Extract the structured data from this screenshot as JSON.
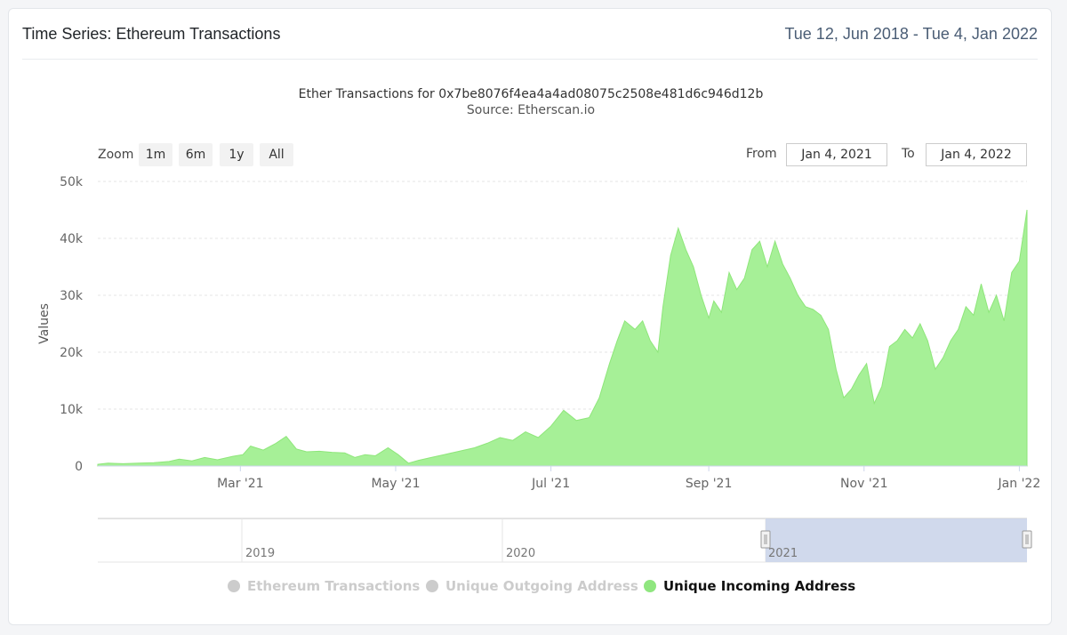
{
  "card": {
    "title": "Time Series: Ethereum Transactions",
    "date_range": "Tue 12, Jun 2018 - Tue 4, Jan 2022"
  },
  "chart_header": {
    "title": "Ether Transactions for 0x7be8076f4ea4a4ad08075c2508e481d6c946d12b",
    "subtitle": "Source: Etherscan.io"
  },
  "range_selector": {
    "zoom_label": "Zoom",
    "buttons": [
      "1m",
      "6m",
      "1y",
      "All"
    ],
    "from_label": "From",
    "from_value": "Jan 4, 2021",
    "to_label": "To",
    "to_value": "Jan 4, 2022"
  },
  "colors": {
    "series_fill": "#a6f097",
    "series_stroke": "#8ee67a",
    "navigator_mask": "#cbd5ea",
    "legend_active": "#8fe67f",
    "legend_inactive": "#cccccc"
  },
  "chart_data": {
    "type": "area",
    "title": "Ether Transactions for 0x7be8076f4ea4a4ad08075c2508e481d6c946d12b",
    "subtitle": "Source: Etherscan.io",
    "ylabel": "Values",
    "xlabel": "",
    "ylim": [
      0,
      50000
    ],
    "xlim": [
      "2021-01-04",
      "2022-01-04"
    ],
    "y_ticks": [
      0,
      10000,
      20000,
      30000,
      40000,
      50000
    ],
    "y_tick_labels": [
      "0",
      "10k",
      "20k",
      "30k",
      "40k",
      "50k"
    ],
    "x_ticks": [
      {
        "date": "2021-03-01",
        "label": "Mar '21"
      },
      {
        "date": "2021-05-01",
        "label": "May '21"
      },
      {
        "date": "2021-07-01",
        "label": "Jul '21"
      },
      {
        "date": "2021-09-01",
        "label": "Sep '21"
      },
      {
        "date": "2021-11-01",
        "label": "Nov '21"
      },
      {
        "date": "2022-01-01",
        "label": "Jan '22"
      }
    ],
    "grid": true,
    "legend_position": "bottom",
    "legend": [
      {
        "name": "Ethereum Transactions",
        "visible": false
      },
      {
        "name": "Unique Outgoing Address",
        "visible": false
      },
      {
        "name": "Unique Incoming Address",
        "visible": true
      }
    ],
    "series": [
      {
        "name": "Unique Incoming Address",
        "x": [
          "2021-01-04",
          "2021-01-08",
          "2021-01-14",
          "2021-01-20",
          "2021-01-26",
          "2021-02-01",
          "2021-02-05",
          "2021-02-10",
          "2021-02-15",
          "2021-02-20",
          "2021-02-26",
          "2021-03-02",
          "2021-03-05",
          "2021-03-10",
          "2021-03-15",
          "2021-03-19",
          "2021-03-23",
          "2021-03-27",
          "2021-04-01",
          "2021-04-06",
          "2021-04-11",
          "2021-04-15",
          "2021-04-19",
          "2021-04-23",
          "2021-04-28",
          "2021-05-02",
          "2021-05-06",
          "2021-05-10",
          "2021-05-15",
          "2021-05-20",
          "2021-05-26",
          "2021-06-01",
          "2021-06-06",
          "2021-06-11",
          "2021-06-16",
          "2021-06-21",
          "2021-06-26",
          "2021-07-01",
          "2021-07-06",
          "2021-07-11",
          "2021-07-16",
          "2021-07-20",
          "2021-07-24",
          "2021-07-27",
          "2021-07-30",
          "2021-08-03",
          "2021-08-06",
          "2021-08-09",
          "2021-08-12",
          "2021-08-14",
          "2021-08-17",
          "2021-08-20",
          "2021-08-23",
          "2021-08-26",
          "2021-08-29",
          "2021-09-01",
          "2021-09-03",
          "2021-09-06",
          "2021-09-09",
          "2021-09-12",
          "2021-09-15",
          "2021-09-18",
          "2021-09-21",
          "2021-09-24",
          "2021-09-27",
          "2021-09-30",
          "2021-10-03",
          "2021-10-06",
          "2021-10-09",
          "2021-10-12",
          "2021-10-15",
          "2021-10-18",
          "2021-10-21",
          "2021-10-24",
          "2021-10-27",
          "2021-10-30",
          "2021-11-02",
          "2021-11-05",
          "2021-11-08",
          "2021-11-11",
          "2021-11-14",
          "2021-11-17",
          "2021-11-20",
          "2021-11-23",
          "2021-11-26",
          "2021-11-29",
          "2021-12-02",
          "2021-12-05",
          "2021-12-08",
          "2021-12-11",
          "2021-12-14",
          "2021-12-17",
          "2021-12-20",
          "2021-12-23",
          "2021-12-26",
          "2021-12-29",
          "2022-01-01",
          "2022-01-04"
        ],
        "values": [
          300,
          500,
          400,
          500,
          600,
          800,
          1200,
          900,
          1500,
          1100,
          1700,
          2000,
          3500,
          2800,
          4000,
          5200,
          3000,
          2500,
          2600,
          2400,
          2300,
          1500,
          2000,
          1800,
          3200,
          2000,
          500,
          1000,
          1500,
          2000,
          2600,
          3200,
          4000,
          5000,
          4500,
          6000,
          5000,
          7000,
          9800,
          8000,
          8500,
          12000,
          18000,
          22000,
          25500,
          24000,
          25500,
          22000,
          20000,
          28000,
          37000,
          41800,
          38000,
          35000,
          30000,
          26000,
          29000,
          27000,
          34000,
          31000,
          33000,
          38000,
          39500,
          35000,
          39500,
          35500,
          33000,
          30000,
          28000,
          27500,
          26500,
          24000,
          17000,
          12000,
          13500,
          16000,
          18000,
          11000,
          14000,
          21000,
          22000,
          24000,
          22500,
          25000,
          22000,
          17000,
          19000,
          22000,
          24000,
          28000,
          26500,
          32000,
          27000,
          30000,
          25500,
          34000,
          36000,
          45000
        ]
      }
    ],
    "navigator": {
      "x_labels": [
        "2019",
        "2020",
        "2021"
      ],
      "selected_range": [
        "2021-01-04",
        "2022-01-04"
      ]
    }
  }
}
